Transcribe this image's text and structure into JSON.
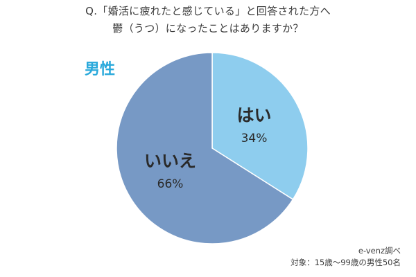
{
  "title": {
    "line1": "Q.「婚活に疲れたと感じている」と回答された方へ",
    "line2": "鬱（うつ）になったことはありますか？"
  },
  "gender_label": "男性",
  "chart_data": {
    "type": "pie",
    "slices": [
      {
        "label": "はい",
        "value": 34,
        "value_label": "34%",
        "color": "#8ecdee"
      },
      {
        "label": "いいえ",
        "value": 66,
        "value_label": "66%",
        "color": "#7799c5"
      }
    ],
    "start": "12 o'clock",
    "direction": "clockwise"
  },
  "source": {
    "line1": "e-venz調べ",
    "line2": "対象：15歳〜99歳の男性50名"
  }
}
